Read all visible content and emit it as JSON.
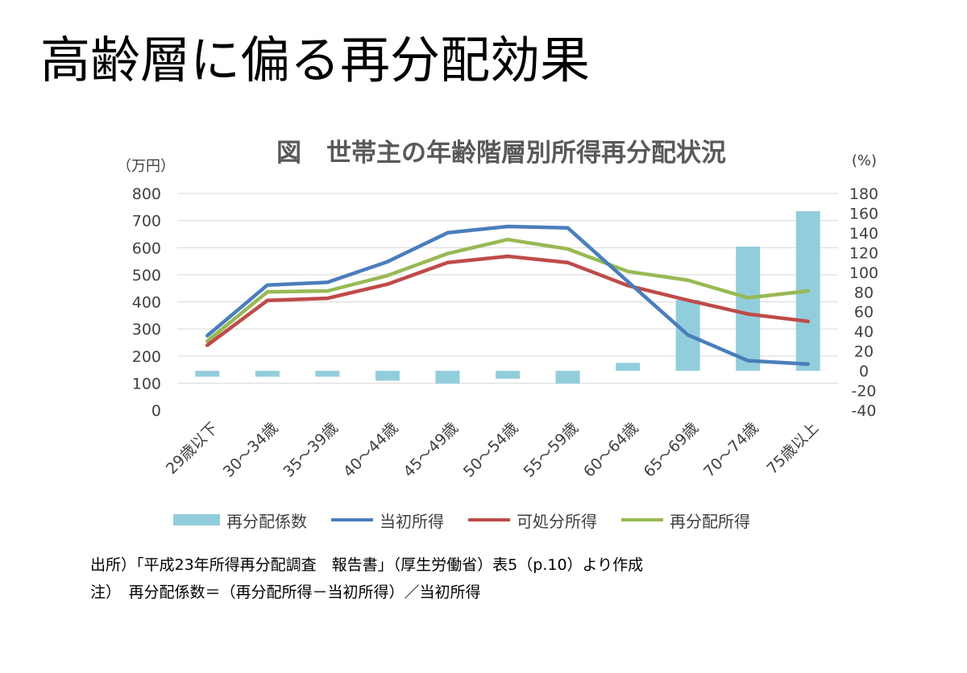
{
  "slide": {
    "title": "高齢層に偏る再分配効果",
    "source_note": "出所）「平成23年所得再分配調査　報告書」（厚生労働省）表5（p.10）より作成",
    "definition_note": "注）　再分配係数＝（再分配所得－当初所得）／当初所得"
  },
  "chart_data": {
    "type": "bar+line",
    "title": "図　世帯主の年齢階層別所得再分配状況",
    "y_left_label": "（万円）",
    "y_right_label": "(%)",
    "y_left_range": [
      0,
      800
    ],
    "y_left_ticks": [
      "0",
      "100",
      "200",
      "300",
      "400",
      "500",
      "600",
      "700",
      "800"
    ],
    "y_right_range": [
      -40,
      180
    ],
    "y_right_ticks": [
      "-40",
      "-20",
      "0",
      "20",
      "40",
      "60",
      "80",
      "100",
      "120",
      "140",
      "160",
      "180"
    ],
    "grid": true,
    "legend_position": "bottom",
    "categories": [
      "29歳以下",
      "30～34歳",
      "35～39歳",
      "40～44歳",
      "45～49歳",
      "50～54歳",
      "55～59歳",
      "60～64歳",
      "65～69歳",
      "70～74歳",
      "75歳以上"
    ],
    "bar_series": {
      "name": "再分配係数",
      "axis": "right",
      "color": "#92cddc",
      "values": [
        -6,
        -6,
        -6,
        -10,
        -13,
        -8,
        -13,
        8,
        72,
        126,
        162
      ]
    },
    "line_series": [
      {
        "name": "当初所得",
        "axis": "left",
        "color": "#4a7ebb",
        "values": [
          275,
          462,
          472,
          548,
          655,
          678,
          673,
          475,
          278,
          183,
          170
        ]
      },
      {
        "name": "可処分所得",
        "axis": "left",
        "color": "#be4b48",
        "values": [
          240,
          405,
          413,
          465,
          545,
          568,
          545,
          460,
          406,
          355,
          328
        ]
      },
      {
        "name": "再分配所得",
        "axis": "left",
        "color": "#98b954",
        "values": [
          255,
          437,
          440,
          497,
          578,
          630,
          595,
          512,
          480,
          415,
          440
        ]
      }
    ]
  }
}
